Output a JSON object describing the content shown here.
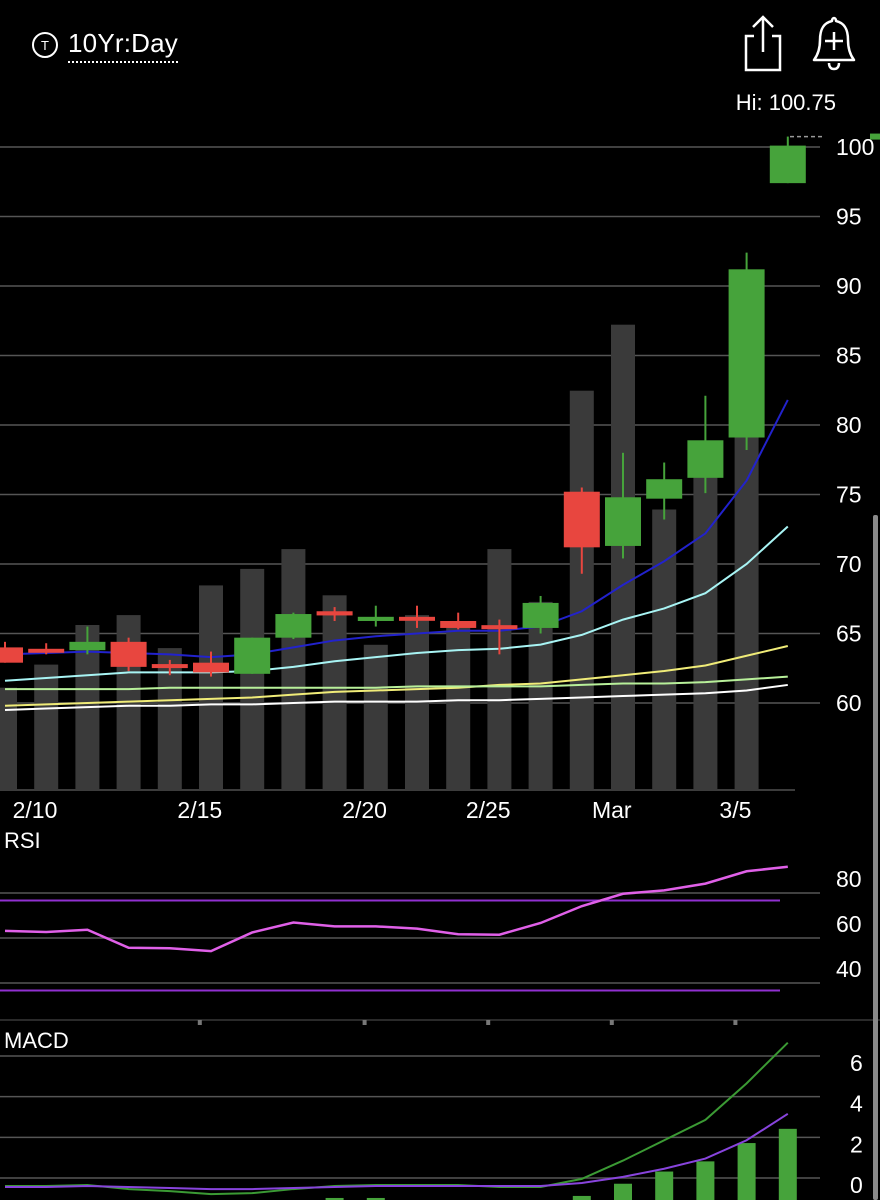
{
  "header": {
    "symbol_icon_letter": "T",
    "period_label": "10Yr:Day",
    "share_icon": "share-icon",
    "alert_icon": "bell-plus-icon",
    "hi_label": "Hi: 100.75"
  },
  "panels": {
    "rsi_title": "RSI",
    "macd_title": "MACD"
  },
  "colors": {
    "up": "#46a33b",
    "down": "#e8463f",
    "volume": "#3a3a3a",
    "grid": "#555555",
    "ma_fast": "#2222cc",
    "ma_mid": "#a8f4f4",
    "ma_slow": "#f0ec78",
    "ma_green": "#b8f09a",
    "ma_white": "#ffffff",
    "rsi_line": "#e060e8",
    "rsi_bands": "#9030d0",
    "macd_line": "#3b9a34",
    "macd_signal": "#8844dd"
  },
  "chart_data": [
    {
      "type": "candlestick",
      "title": "",
      "x_tick_labels": [
        "2/10",
        "2/15",
        "2/20",
        "2/25",
        "Mar",
        "3/5"
      ],
      "y_ticks": [
        60,
        65,
        70,
        75,
        80,
        85,
        90,
        95,
        100
      ],
      "ylim": [
        55.5,
        101.1
      ],
      "high_marker": 100.75,
      "candles": [
        {
          "o": 64.0,
          "h": 64.4,
          "l": 62.9,
          "c": 62.9
        },
        {
          "o": 63.9,
          "h": 64.3,
          "l": 63.5,
          "c": 63.8
        },
        {
          "o": 63.8,
          "h": 65.5,
          "l": 63.5,
          "c": 64.4
        },
        {
          "o": 64.4,
          "h": 64.7,
          "l": 62.3,
          "c": 62.6
        },
        {
          "o": 62.8,
          "h": 63.1,
          "l": 62.0,
          "c": 62.6
        },
        {
          "o": 62.9,
          "h": 63.7,
          "l": 61.9,
          "c": 62.2
        },
        {
          "o": 62.1,
          "h": 64.7,
          "l": 62.1,
          "c": 64.7
        },
        {
          "o": 64.7,
          "h": 66.5,
          "l": 64.6,
          "c": 66.4
        },
        {
          "o": 66.6,
          "h": 66.9,
          "l": 65.9,
          "c": 66.3
        },
        {
          "o": 65.9,
          "h": 67.0,
          "l": 65.5,
          "c": 66.2
        },
        {
          "o": 66.2,
          "h": 67.0,
          "l": 65.4,
          "c": 66.0
        },
        {
          "o": 65.9,
          "h": 66.5,
          "l": 65.3,
          "c": 65.4
        },
        {
          "o": 65.6,
          "h": 66.0,
          "l": 63.5,
          "c": 65.5
        },
        {
          "o": 65.4,
          "h": 67.7,
          "l": 65.0,
          "c": 67.2
        },
        {
          "o": 75.2,
          "h": 75.5,
          "l": 69.3,
          "c": 71.2
        },
        {
          "o": 71.3,
          "h": 78.0,
          "l": 70.4,
          "c": 74.8
        },
        {
          "o": 74.7,
          "h": 77.3,
          "l": 73.2,
          "c": 76.1
        },
        {
          "o": 76.2,
          "h": 82.1,
          "l": 75.1,
          "c": 78.9
        },
        {
          "o": 79.1,
          "h": 92.4,
          "l": 78.2,
          "c": 91.2
        },
        {
          "o": 97.4,
          "h": 100.75,
          "l": 97.4,
          "c": 100.1
        }
      ],
      "volume": [
        0.31,
        0.38,
        0.5,
        0.53,
        0.43,
        0.62,
        0.67,
        0.73,
        0.59,
        0.44,
        0.53,
        0.51,
        0.73,
        0.57,
        1.21,
        1.41,
        0.85,
        1.02,
        1.32,
        0.0
      ],
      "moving_averages": [
        {
          "values": [
            63.5,
            63.6,
            63.7,
            63.6,
            63.5,
            63.3,
            63.5,
            64.0,
            64.5,
            64.8,
            65.0,
            65.2,
            65.2,
            65.5,
            66.6,
            68.5,
            70.2,
            72.2,
            76.0,
            81.8
          ]
        },
        {
          "values": [
            61.6,
            61.8,
            62.0,
            62.2,
            62.2,
            62.2,
            62.3,
            62.6,
            63.0,
            63.3,
            63.6,
            63.8,
            63.9,
            64.2,
            64.9,
            66.0,
            66.8,
            67.9,
            70.0,
            72.7
          ]
        },
        {
          "values": [
            59.8,
            59.9,
            60.0,
            60.1,
            60.2,
            60.3,
            60.4,
            60.6,
            60.8,
            60.9,
            61.0,
            61.1,
            61.3,
            61.4,
            61.7,
            62.0,
            62.3,
            62.7,
            63.4,
            64.1
          ]
        },
        {
          "values": [
            61.0,
            61.0,
            61.0,
            61.0,
            61.1,
            61.1,
            61.1,
            61.1,
            61.1,
            61.1,
            61.2,
            61.2,
            61.2,
            61.2,
            61.3,
            61.4,
            61.4,
            61.5,
            61.7,
            61.9
          ]
        },
        {
          "values": [
            59.5,
            59.6,
            59.7,
            59.8,
            59.8,
            59.9,
            59.9,
            60.0,
            60.1,
            60.1,
            60.1,
            60.2,
            60.2,
            60.3,
            60.4,
            60.5,
            60.6,
            60.7,
            60.9,
            61.3
          ]
        }
      ]
    },
    {
      "type": "line",
      "title": "RSI",
      "y_ticks": [
        40,
        60,
        80
      ],
      "ylim": [
        25,
        95
      ],
      "bands": [
        70,
        30
      ],
      "values": [
        56.5,
        56.0,
        57.0,
        49.0,
        48.8,
        47.5,
        55.8,
        60.2,
        58.5,
        58.5,
        57.5,
        55.0,
        54.8,
        60.0,
        67.5,
        73.0,
        74.5,
        77.5,
        83.0,
        85.0
      ]
    },
    {
      "type": "bar",
      "title": "MACD",
      "y_ticks": [
        0,
        2,
        4,
        6
      ],
      "ylim": [
        -0.6,
        7.4
      ],
      "macd": [
        -0.05,
        -0.05,
        0.0,
        -0.2,
        -0.3,
        -0.45,
        -0.4,
        -0.2,
        -0.05,
        0.0,
        0.0,
        0.0,
        -0.1,
        -0.1,
        0.3,
        1.2,
        2.2,
        3.2,
        5.0,
        7.0
      ],
      "signal": [
        -0.1,
        -0.1,
        -0.05,
        -0.1,
        -0.15,
        -0.2,
        -0.2,
        -0.15,
        -0.1,
        -0.05,
        -0.05,
        -0.05,
        -0.05,
        -0.05,
        0.1,
        0.4,
        0.8,
        1.3,
        2.2,
        3.5
      ],
      "histogram": [
        0.05,
        0.05,
        0.05,
        -0.1,
        -0.15,
        -0.25,
        -0.2,
        -0.05,
        0.1,
        0.1,
        0.05,
        0.05,
        -0.05,
        -0.05,
        0.2,
        0.8,
        1.4,
        1.9,
        2.8,
        3.5
      ]
    }
  ]
}
